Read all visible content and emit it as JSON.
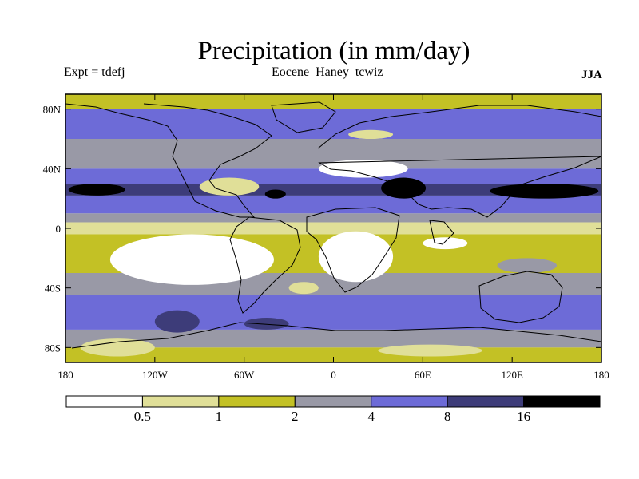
{
  "header": {
    "title": "Precipitation (in mm/day)",
    "left_label": "Expt = tdefj",
    "center_label": "Eocene_Haney_tcwiz",
    "right_label": "JJA"
  },
  "chart_data": {
    "type": "heatmap",
    "title": "Precipitation (in mm/day)",
    "subtitle": "Eocene_Haney_tcwiz",
    "experiment": "Expt = tdefj",
    "season": "JJA",
    "x_ticks": [
      {
        "value": -180,
        "label": "180"
      },
      {
        "value": -120,
        "label": "120W"
      },
      {
        "value": -60,
        "label": "60W"
      },
      {
        "value": 0,
        "label": "0"
      },
      {
        "value": 60,
        "label": "60E"
      },
      {
        "value": 120,
        "label": "120E"
      },
      {
        "value": 180,
        "label": "180"
      }
    ],
    "y_ticks": [
      {
        "value": 80,
        "label": "80N"
      },
      {
        "value": 40,
        "label": "40N"
      },
      {
        "value": 0,
        "label": "0"
      },
      {
        "value": -40,
        "label": "40S"
      },
      {
        "value": -80,
        "label": "80S"
      }
    ],
    "xlim": [
      -180,
      180
    ],
    "ylim": [
      -90,
      90
    ],
    "colorbar": {
      "levels": [
        0.5,
        1,
        2,
        4,
        8,
        16
      ],
      "labels": [
        "0.5",
        "1",
        "2",
        "4",
        "8",
        "16"
      ],
      "colors": [
        "#ffffff",
        "#e0df98",
        "#c3c125",
        "#9999a6",
        "#6d6bd7",
        "#3d3c79",
        "#000000"
      ]
    },
    "lat_bands": [
      {
        "lat": [
          80,
          90
        ],
        "category": 2
      },
      {
        "lat": [
          60,
          80
        ],
        "category": 4
      },
      {
        "lat": [
          40,
          60
        ],
        "category": 3
      },
      {
        "lat": [
          30,
          40
        ],
        "category": 4
      },
      {
        "lat": [
          22,
          30
        ],
        "category": 5
      },
      {
        "lat": [
          10,
          22
        ],
        "category": 4
      },
      {
        "lat": [
          4,
          10
        ],
        "category": 3
      },
      {
        "lat": [
          -4,
          4
        ],
        "category": 1
      },
      {
        "lat": [
          -30,
          -4
        ],
        "category": 2
      },
      {
        "lat": [
          -45,
          -30
        ],
        "category": 3
      },
      {
        "lat": [
          -68,
          -45
        ],
        "category": 4
      },
      {
        "lat": [
          -80,
          -68
        ],
        "category": 3
      },
      {
        "lat": [
          -90,
          -80
        ],
        "category": 2
      }
    ],
    "regions": [
      {
        "lon": [
          -178,
          -140
        ],
        "lat": [
          22,
          30
        ],
        "category": 6
      },
      {
        "lon": [
          105,
          178
        ],
        "lat": [
          20,
          30
        ],
        "category": 6
      },
      {
        "lon": [
          32,
          62
        ],
        "lat": [
          20,
          34
        ],
        "category": 6
      },
      {
        "lon": [
          -46,
          -32
        ],
        "lat": [
          20,
          26
        ],
        "category": 6
      },
      {
        "lon": [
          -150,
          -40
        ],
        "lat": [
          -4,
          -38
        ],
        "category": 0
      },
      {
        "lon": [
          -10,
          40
        ],
        "lat": [
          -2,
          -36
        ],
        "category": 0
      },
      {
        "lon": [
          60,
          90
        ],
        "lat": [
          -6,
          -14
        ],
        "category": 0
      },
      {
        "lon": [
          -90,
          -50
        ],
        "lat": [
          22,
          34
        ],
        "category": 1
      },
      {
        "lon": [
          -10,
          50
        ],
        "lat": [
          34,
          46
        ],
        "category": 0
      },
      {
        "lon": [
          10,
          40
        ],
        "lat": [
          60,
          66
        ],
        "category": 1
      },
      {
        "lon": [
          -30,
          -10
        ],
        "lat": [
          -36,
          -44
        ],
        "category": 1
      },
      {
        "lon": [
          -60,
          -30
        ],
        "lat": [
          -60,
          -68
        ],
        "category": 5
      },
      {
        "lon": [
          30,
          100
        ],
        "lat": [
          -78,
          -86
        ],
        "category": 1
      },
      {
        "lon": [
          -170,
          -120
        ],
        "lat": [
          -74,
          -86
        ],
        "category": 1
      },
      {
        "lon": [
          110,
          150
        ],
        "lat": [
          -20,
          -30
        ],
        "category": 3
      },
      {
        "lon": [
          -120,
          -90
        ],
        "lat": [
          -55,
          -70
        ],
        "category": 5
      }
    ]
  }
}
